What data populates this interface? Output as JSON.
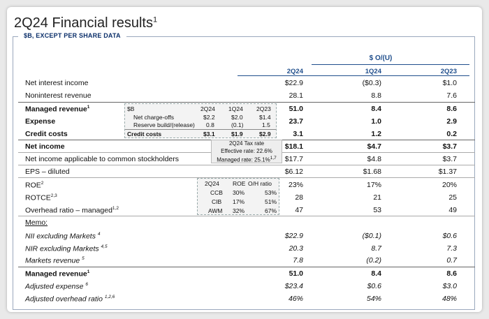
{
  "title": "2Q24 Financial results",
  "title_sup": "1",
  "section_label": "$B, EXCEPT PER SHARE DATA",
  "group_header": "$ O/(U)",
  "col_headers": [
    "2Q24",
    "1Q24",
    "2Q23"
  ],
  "rows": [
    {
      "label": "Net interest income",
      "sup": "",
      "v": [
        "$22.9",
        "($0.3)",
        "$1.0"
      ]
    },
    {
      "label": "Noninterest revenue",
      "sup": "",
      "v": [
        "28.1",
        "8.8",
        "7.6"
      ]
    },
    {
      "label": "Managed revenue",
      "sup": "1",
      "v": [
        "51.0",
        "8.4",
        "8.6"
      ]
    },
    {
      "label": "Expense",
      "sup": "",
      "v": [
        "23.7",
        "1.0",
        "2.9"
      ]
    },
    {
      "label": "Credit costs",
      "sup": "",
      "v": [
        "3.1",
        "1.2",
        "0.2"
      ]
    },
    {
      "label": "Net income",
      "sup": "",
      "v": [
        "$18.1",
        "$4.7",
        "$3.7"
      ]
    },
    {
      "label": "Net income applicable to common stockholders",
      "sup": "",
      "v": [
        "$17.7",
        "$4.8",
        "$3.7"
      ]
    },
    {
      "label": "EPS – diluted",
      "sup": "",
      "v": [
        "$6.12",
        "$1.68",
        "$1.37"
      ]
    },
    {
      "label": "ROE",
      "sup": "2",
      "v": [
        "23%",
        "17%",
        "20%"
      ]
    },
    {
      "label": "ROTCE",
      "sup": "2,3",
      "v": [
        "28",
        "21",
        "25"
      ]
    },
    {
      "label": "Overhead ratio – managed",
      "sup": "1,2",
      "v": [
        "47",
        "53",
        "49"
      ]
    }
  ],
  "memo_label": "Memo:",
  "memo_rows": [
    {
      "label": "NII excluding Markets",
      "sup": "4",
      "v": [
        "$22.9",
        "($0.1)",
        "$0.6"
      ]
    },
    {
      "label": "NIR excluding Markets",
      "sup": "4,5",
      "v": [
        "20.3",
        "8.7",
        "7.3"
      ]
    },
    {
      "label": "Markets revenue",
      "sup": "5",
      "v": [
        "7.8",
        "(0.2)",
        "0.7"
      ]
    }
  ],
  "managed_row": {
    "label": "Managed revenue",
    "sup": "1",
    "v": [
      "51.0",
      "8.4",
      "8.6"
    ]
  },
  "adj_rows": [
    {
      "label": "Adjusted expense",
      "sup": "6",
      "v": [
        "$23.4",
        "$0.6",
        "$3.0"
      ]
    },
    {
      "label": "Adjusted overhead ratio",
      "sup": "1,2,6",
      "v": [
        "46%",
        "54%",
        "48%"
      ]
    }
  ],
  "credit_inset": {
    "header": [
      "$B",
      "2Q24",
      "1Q24",
      "2Q23"
    ],
    "rows": [
      {
        "label": "Net charge-offs",
        "v": [
          "$2.2",
          "$2.0",
          "$1.4"
        ]
      },
      {
        "label": "Reserve build/(release)",
        "v": [
          "0.8",
          "(0.1)",
          "1.5"
        ]
      },
      {
        "label": "Credit costs",
        "v": [
          "$3.1",
          "$1.9",
          "$2.9"
        ]
      }
    ]
  },
  "tax_inset": {
    "title": "2Q24 Tax rate",
    "effective": "Effective rate: 22.6%",
    "managed": "Managed rate: 25.1%",
    "managed_sup": "1,7"
  },
  "roe_inset": {
    "header": [
      "2Q24",
      "ROE",
      "O/H ratio"
    ],
    "rows": [
      {
        "seg": "CCB",
        "roe": "30%",
        "oh": "53%"
      },
      {
        "seg": "CIB",
        "roe": "17%",
        "oh": "51%"
      },
      {
        "seg": "AWM",
        "roe": "32%",
        "oh": "67%"
      }
    ]
  }
}
